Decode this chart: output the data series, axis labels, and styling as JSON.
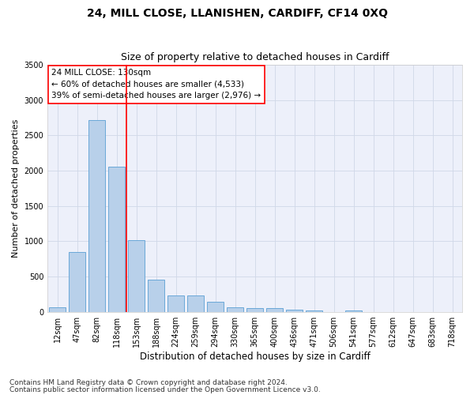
{
  "title": "24, MILL CLOSE, LLANISHEN, CARDIFF, CF14 0XQ",
  "subtitle": "Size of property relative to detached houses in Cardiff",
  "xlabel": "Distribution of detached houses by size in Cardiff",
  "ylabel": "Number of detached properties",
  "footnote1": "Contains HM Land Registry data © Crown copyright and database right 2024.",
  "footnote2": "Contains public sector information licensed under the Open Government Licence v3.0.",
  "categories": [
    "12sqm",
    "47sqm",
    "82sqm",
    "118sqm",
    "153sqm",
    "188sqm",
    "224sqm",
    "259sqm",
    "294sqm",
    "330sqm",
    "365sqm",
    "400sqm",
    "436sqm",
    "471sqm",
    "506sqm",
    "541sqm",
    "577sqm",
    "612sqm",
    "647sqm",
    "683sqm",
    "718sqm"
  ],
  "values": [
    60,
    850,
    2720,
    2060,
    1010,
    455,
    225,
    230,
    140,
    65,
    55,
    50,
    30,
    20,
    0,
    20,
    0,
    0,
    0,
    0,
    0
  ],
  "bar_color": "#b8d0ea",
  "bar_edge_color": "#5a9fd4",
  "grid_color": "#d0d8e8",
  "bg_color": "#edf0fa",
  "vline_color": "red",
  "vline_x_index": 3,
  "annotation_box_color": "red",
  "annotation_text_line1": "24 MILL CLOSE: 130sqm",
  "annotation_text_line2": "← 60% of detached houses are smaller (4,533)",
  "annotation_text_line3": "39% of semi-detached houses are larger (2,976) →",
  "ylim": [
    0,
    3500
  ],
  "title_fontsize": 10,
  "subtitle_fontsize": 9,
  "xlabel_fontsize": 8.5,
  "ylabel_fontsize": 8,
  "tick_fontsize": 7,
  "annotation_fontsize": 7.5,
  "footnote_fontsize": 6.5
}
